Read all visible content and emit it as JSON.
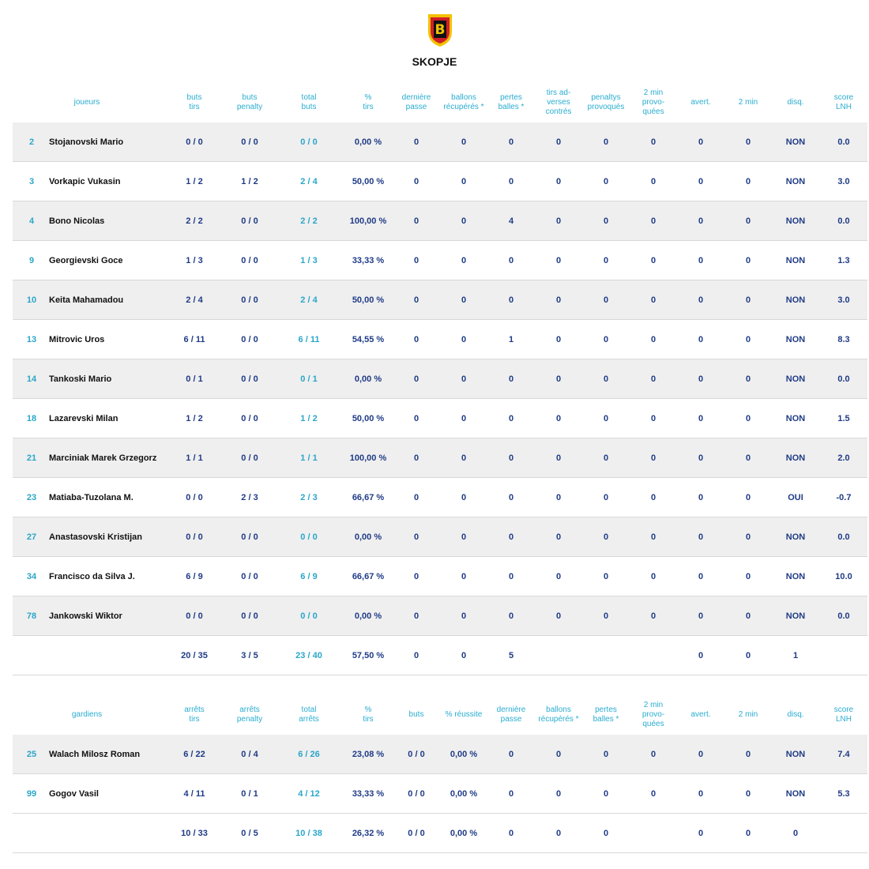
{
  "header": {
    "team": "SKOPJE"
  },
  "players": {
    "columns": [
      [
        "joueurs"
      ],
      [
        "buts",
        "tirs"
      ],
      [
        "buts",
        "penalty"
      ],
      [
        "total",
        "buts"
      ],
      [
        "%",
        "tirs"
      ],
      [
        "dernière",
        "passe"
      ],
      [
        "ballons",
        "récupérés *"
      ],
      [
        "pertes",
        "balles *"
      ],
      [
        "tirs ad-",
        "verses",
        "contrés"
      ],
      [
        "penaltys",
        "provoqués"
      ],
      [
        "2 min",
        "provo-",
        "quées"
      ],
      [
        "avert."
      ],
      [
        "2 min"
      ],
      [
        "disq."
      ],
      [
        "score",
        "LNH"
      ]
    ],
    "rows": [
      [
        "2",
        "Stojanovski Mario",
        "0 / 0",
        "0 / 0",
        "0 / 0",
        "0,00 %",
        "0",
        "0",
        "0",
        "0",
        "0",
        "0",
        "0",
        "0",
        "NON",
        "0.0"
      ],
      [
        "3",
        "Vorkapic Vukasin",
        "1 / 2",
        "1 / 2",
        "2 / 4",
        "50,00 %",
        "0",
        "0",
        "0",
        "0",
        "0",
        "0",
        "0",
        "0",
        "NON",
        "3.0"
      ],
      [
        "4",
        "Bono Nicolas",
        "2 / 2",
        "0 / 0",
        "2 / 2",
        "100,00 %",
        "0",
        "0",
        "4",
        "0",
        "0",
        "0",
        "0",
        "0",
        "NON",
        "0.0"
      ],
      [
        "9",
        "Georgievski Goce",
        "1 / 3",
        "0 / 0",
        "1 / 3",
        "33,33 %",
        "0",
        "0",
        "0",
        "0",
        "0",
        "0",
        "0",
        "0",
        "NON",
        "1.3"
      ],
      [
        "10",
        "Keita Mahamadou",
        "2 / 4",
        "0 / 0",
        "2 / 4",
        "50,00 %",
        "0",
        "0",
        "0",
        "0",
        "0",
        "0",
        "0",
        "0",
        "NON",
        "3.0"
      ],
      [
        "13",
        "Mitrovic Uros",
        "6 / 11",
        "0 / 0",
        "6 / 11",
        "54,55 %",
        "0",
        "0",
        "1",
        "0",
        "0",
        "0",
        "0",
        "0",
        "NON",
        "8.3"
      ],
      [
        "14",
        "Tankoski Mario",
        "0 / 1",
        "0 / 0",
        "0 / 1",
        "0,00 %",
        "0",
        "0",
        "0",
        "0",
        "0",
        "0",
        "0",
        "0",
        "NON",
        "0.0"
      ],
      [
        "18",
        "Lazarevski Milan",
        "1 / 2",
        "0 / 0",
        "1 / 2",
        "50,00 %",
        "0",
        "0",
        "0",
        "0",
        "0",
        "0",
        "0",
        "0",
        "NON",
        "1.5"
      ],
      [
        "21",
        "Marciniak Marek Grzegorz",
        "1 / 1",
        "0 / 0",
        "1 / 1",
        "100,00 %",
        "0",
        "0",
        "0",
        "0",
        "0",
        "0",
        "0",
        "0",
        "NON",
        "2.0"
      ],
      [
        "23",
        "Matiaba-Tuzolana M.",
        "0 / 0",
        "2 / 3",
        "2 / 3",
        "66,67 %",
        "0",
        "0",
        "0",
        "0",
        "0",
        "0",
        "0",
        "0",
        "OUI",
        "-0.7"
      ],
      [
        "27",
        "Anastasovski Kristijan",
        "0 / 0",
        "0 / 0",
        "0 / 0",
        "0,00 %",
        "0",
        "0",
        "0",
        "0",
        "0",
        "0",
        "0",
        "0",
        "NON",
        "0.0"
      ],
      [
        "34",
        "Francisco da Silva J.",
        "6 / 9",
        "0 / 0",
        "6 / 9",
        "66,67 %",
        "0",
        "0",
        "0",
        "0",
        "0",
        "0",
        "0",
        "0",
        "NON",
        "10.0"
      ],
      [
        "78",
        "Jankowski Wiktor",
        "0 / 0",
        "0 / 0",
        "0 / 0",
        "0,00 %",
        "0",
        "0",
        "0",
        "0",
        "0",
        "0",
        "0",
        "0",
        "NON",
        "0.0"
      ]
    ],
    "totals": [
      null,
      null,
      "20 / 35",
      "3 / 5",
      "23 / 40",
      "57,50 %",
      "0",
      "0",
      "5",
      null,
      null,
      null,
      "0",
      "0",
      "1",
      null
    ]
  },
  "goalkeepers": {
    "columns": [
      [
        "gardiens"
      ],
      [
        "arrêts",
        "tirs"
      ],
      [
        "arrêts",
        "penalty"
      ],
      [
        "total",
        "arrêts"
      ],
      [
        "%",
        "tirs"
      ],
      [
        "buts"
      ],
      [
        "% réussite"
      ],
      [
        "dernière",
        "passe"
      ],
      [
        "ballons",
        "récupérés *"
      ],
      [
        "pertes",
        "balles *"
      ],
      [
        "2 min",
        "provo-",
        "quées"
      ],
      [
        "avert."
      ],
      [
        "2 min"
      ],
      [
        "disq."
      ],
      [
        "score",
        "LNH"
      ]
    ],
    "rows": [
      [
        "25",
        "Walach Milosz Roman",
        "6 / 22",
        "0 / 4",
        "6 / 26",
        "23,08 %",
        "0 / 0",
        "0,00 %",
        "0",
        "0",
        "0",
        "0",
        "0",
        "0",
        "NON",
        "7.4"
      ],
      [
        "99",
        "Gogov Vasil",
        "4 / 11",
        "0 / 1",
        "4 / 12",
        "33,33 %",
        "0 / 0",
        "0,00 %",
        "0",
        "0",
        "0",
        "0",
        "0",
        "0",
        "NON",
        "5.3"
      ]
    ],
    "totals": [
      null,
      null,
      "10 / 33",
      "0 / 5",
      "10 / 38",
      "26,32 %",
      "0 / 0",
      "0,00 %",
      "0",
      "0",
      "0",
      null,
      "0",
      "0",
      "0",
      null
    ]
  }
}
